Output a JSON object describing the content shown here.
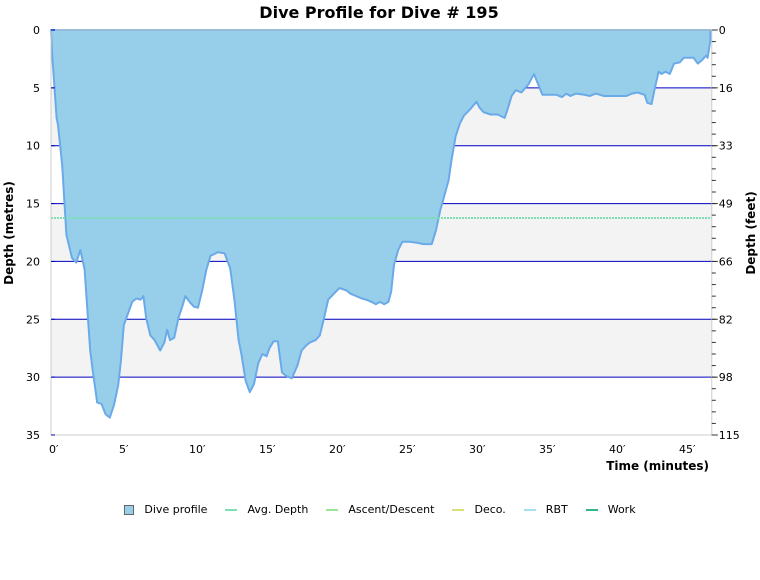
{
  "chart_data": {
    "type": "area",
    "title": "Dive Profile for Dive # 195",
    "xlabel": "Time (minutes)",
    "ylabel": "Depth (metres)",
    "ylabel_right": "Depth (feet)",
    "xlim": [
      0,
      47.2
    ],
    "ylim": [
      0,
      35
    ],
    "y_inverted": true,
    "grid": "horizontal",
    "legend_position": "bottom",
    "x_ticks": [
      "0′",
      "5′",
      "10′",
      "15′",
      "20′",
      "25′",
      "30′",
      "35′",
      "40′",
      "45′"
    ],
    "x_tick_values": [
      0,
      5,
      10,
      15,
      20,
      25,
      30,
      35,
      40,
      45
    ],
    "y_ticks": [
      0,
      5,
      10,
      15,
      20,
      25,
      30,
      35
    ],
    "y_right_ticks": [
      "0",
      "16",
      "33",
      "49",
      "66",
      "82",
      "98",
      "115"
    ],
    "avg_depth": 16.25,
    "legend": [
      "Dive profile",
      "Avg. Depth",
      "Ascent/Descent",
      "Deco.",
      "RBT",
      "Work"
    ],
    "series": [
      {
        "name": "Dive profile",
        "time_min": [
          0,
          0.1,
          0.4,
          0.5,
          0.8,
          1.1,
          1.5,
          1.8,
          2.1,
          2.4,
          2.6,
          2.8,
          3.0,
          3.3,
          3.6,
          3.9,
          4.2,
          4.5,
          4.8,
          5.0,
          5.2,
          5.5,
          5.8,
          6.1,
          6.4,
          6.6,
          6.8,
          7.1,
          7.4,
          7.8,
          8.1,
          8.3,
          8.5,
          8.8,
          9.1,
          9.4,
          9.6,
          9.9,
          10.2,
          10.5,
          10.8,
          11.1,
          11.4,
          11.6,
          11.9,
          12.4,
          12.8,
          13.1,
          13.4,
          13.6,
          13.9,
          14.2,
          14.5,
          14.8,
          15.1,
          15.4,
          15.6,
          15.9,
          16.2,
          16.5,
          16.8,
          17.2,
          17.6,
          17.9,
          18.2,
          18.5,
          18.9,
          19.2,
          19.5,
          19.8,
          20.2,
          20.6,
          21.1,
          21.4,
          21.8,
          22.2,
          22.5,
          22.9,
          23.2,
          23.5,
          23.8,
          24.1,
          24.3,
          24.5,
          24.8,
          25.1,
          25.6,
          26.2,
          26.6,
          27.2,
          27.5,
          27.8,
          28.1,
          28.4,
          28.6,
          28.9,
          29.2,
          29.5,
          29.9,
          30.4,
          30.6,
          30.9,
          31.4,
          31.9,
          32.4,
          32.6,
          32.9,
          33.2,
          33.6,
          34.1,
          34.5,
          34.8,
          35.1,
          35.5,
          36.1,
          36.5,
          36.8,
          37.1,
          37.5,
          38.1,
          38.5,
          38.9,
          39.5,
          40.1,
          40.6,
          41.1,
          41.5,
          41.9,
          42.4,
          42.6,
          42.9,
          43.1,
          43.4,
          43.6,
          43.9,
          44.2,
          44.5,
          44.9,
          45.2,
          45.6,
          45.9,
          46.2,
          46.5,
          46.8,
          46.9,
          47.1,
          47.1
        ],
        "depth_m": [
          0,
          2.4,
          7.6,
          8.2,
          11.7,
          17.7,
          19.7,
          20.1,
          19.0,
          20.7,
          24.2,
          27.7,
          29.6,
          32.2,
          32.3,
          33.2,
          33.5,
          32.4,
          30.7,
          28.5,
          25.5,
          24.5,
          23.5,
          23.2,
          23.3,
          23.0,
          24.9,
          26.4,
          26.8,
          27.7,
          27.0,
          25.9,
          26.8,
          26.6,
          24.9,
          23.8,
          23.0,
          23.5,
          23.9,
          24.0,
          22.5,
          20.7,
          19.5,
          19.4,
          19.2,
          19.3,
          20.6,
          23.3,
          26.8,
          28.0,
          30.3,
          31.3,
          30.6,
          28.8,
          28.0,
          28.2,
          27.5,
          26.9,
          26.9,
          29.6,
          29.9,
          30.1,
          29.0,
          27.7,
          27.3,
          27.0,
          26.8,
          26.4,
          24.9,
          23.3,
          22.8,
          22.3,
          22.5,
          22.8,
          23.0,
          23.2,
          23.3,
          23.5,
          23.7,
          23.5,
          23.7,
          23.5,
          22.6,
          20.3,
          19.0,
          18.3,
          18.3,
          18.4,
          18.5,
          18.5,
          17.3,
          15.6,
          14.3,
          13.0,
          11.3,
          9.2,
          8.1,
          7.4,
          6.9,
          6.2,
          6.7,
          7.1,
          7.3,
          7.3,
          7.6,
          6.9,
          5.7,
          5.2,
          5.4,
          4.7,
          3.8,
          4.7,
          5.6,
          5.6,
          5.6,
          5.8,
          5.5,
          5.7,
          5.5,
          5.6,
          5.7,
          5.5,
          5.7,
          5.7,
          5.7,
          5.7,
          5.5,
          5.4,
          5.6,
          6.3,
          6.4,
          5.2,
          3.6,
          3.8,
          3.6,
          3.8,
          2.9,
          2.8,
          2.4,
          2.4,
          2.4,
          2.9,
          2.6,
          2.2,
          2.4,
          0.9,
          0
        ]
      },
      {
        "name": "Avg. Depth",
        "value_m": 16.25
      }
    ]
  },
  "colors": {
    "fill": "#97cfea",
    "stroke": "#6aaae8",
    "grid": "#0000c0",
    "band": "#f3f3f3",
    "avg_depth": "#7ddfb4",
    "ascent_descent": "#99e699",
    "deco": "#d8e07a",
    "rbt": "#a8def4",
    "work": "#2fb58a",
    "axis": "#cccccc"
  },
  "legend": {
    "items": [
      {
        "label": "Dive profile",
        "kind": "box",
        "color": "#97cfea"
      },
      {
        "label": "Avg. Depth",
        "kind": "line",
        "color": "#7ddfb4"
      },
      {
        "label": "Ascent/Descent",
        "kind": "line",
        "color": "#99e699"
      },
      {
        "label": "Deco.",
        "kind": "line",
        "color": "#d8e07a"
      },
      {
        "label": "RBT",
        "kind": "line",
        "color": "#a8def4"
      },
      {
        "label": "Work",
        "kind": "line",
        "color": "#2fb58a"
      }
    ]
  }
}
